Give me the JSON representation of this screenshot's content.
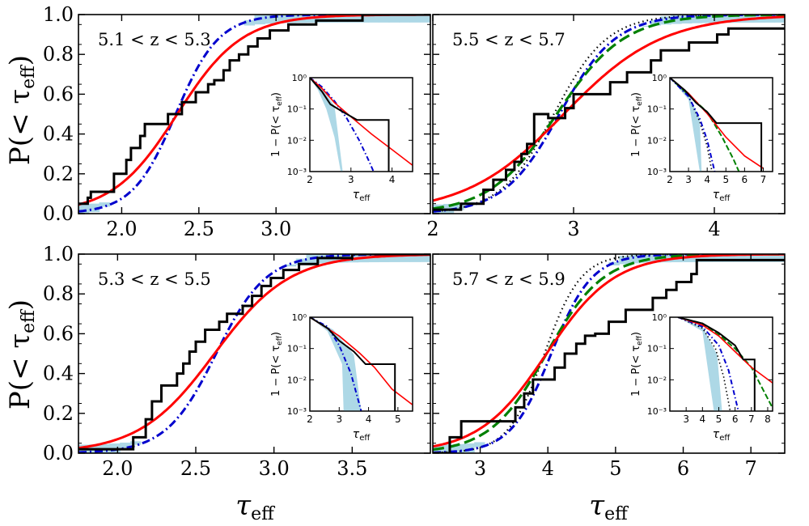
{
  "figure": {
    "ylabel": "P(< τ",
    "ylabel_sub": "eff",
    "ylabel_tail": ")",
    "xlabel": "τ",
    "xlabel_sub": "eff",
    "inset_ylabel": "1 − P(< τ",
    "inset_ylabel_sub": "eff",
    "inset_ylabel_tail": ")",
    "inset_xlabel": "τ",
    "inset_xlabel_sub": "eff"
  },
  "colors": {
    "data_line": "#000000",
    "band": "#add8e6",
    "model_red": "#ff0000",
    "model_blue": "#0000cd",
    "model_green": "#008000",
    "model_dotted": "#000000"
  },
  "chart_data": [
    {
      "type": "line",
      "title": "5.1 < z < 5.3",
      "xlim": [
        1.72,
        4.0
      ],
      "ylim": [
        0,
        1
      ],
      "xticks": [
        2.0,
        2.5,
        3.0
      ],
      "xtick_labels": [
        "2.0",
        "2.5",
        "3.0"
      ],
      "yticks": [
        0.0,
        0.2,
        0.4,
        0.6,
        0.8,
        1.0
      ],
      "ytick_labels": [
        "0.0",
        "0.2",
        "0.4",
        "0.6",
        "0.8",
        "1.0"
      ],
      "series": [
        {
          "name": "observed",
          "style": "step",
          "x": [
            1.72,
            1.78,
            1.8,
            1.9,
            1.95,
            2.03,
            2.06,
            2.12,
            2.15,
            2.2,
            2.26,
            2.3,
            2.36,
            2.39,
            2.44,
            2.48,
            2.56,
            2.6,
            2.66,
            2.7,
            2.76,
            2.82,
            2.88,
            2.96,
            3.08,
            3.26,
            3.56,
            4.0
          ],
          "y": [
            0.05,
            0.08,
            0.11,
            0.11,
            0.2,
            0.27,
            0.33,
            0.39,
            0.45,
            0.45,
            0.45,
            0.5,
            0.5,
            0.56,
            0.56,
            0.61,
            0.65,
            0.67,
            0.72,
            0.77,
            0.8,
            0.84,
            0.88,
            0.92,
            0.95,
            0.97,
            1.0,
            1.0
          ]
        },
        {
          "name": "band",
          "model": "logistic",
          "mu": 2.35,
          "s": 0.14,
          "spread": 0.055
        },
        {
          "name": "dash-dot model",
          "model": "logistic",
          "mu": 2.35,
          "s": 0.14
        },
        {
          "name": "red model",
          "model": "logistic",
          "mu": 2.36,
          "s": 0.21
        }
      ],
      "inset": {
        "xlim": [
          2.0,
          4.5
        ],
        "xticks": [
          2,
          3,
          4
        ],
        "xtick_labels": [
          "2",
          "3",
          "4"
        ],
        "ylim_log": [
          -3,
          0
        ],
        "yticks": [
          0,
          -1,
          -2,
          -3
        ],
        "ytick_labels": [
          "10⁰",
          "10⁻¹",
          "10⁻²",
          "10⁻³"
        ],
        "observed": {
          "x": [
            2.0,
            2.3,
            2.5,
            2.75,
            3.15,
            3.15,
            3.92,
            3.92
          ],
          "log": [
            0,
            -0.45,
            -0.85,
            -1.05,
            -1.35,
            -1.35,
            -1.35,
            -3
          ]
        },
        "red": {
          "x": [
            2.0,
            2.3,
            2.6,
            3.0,
            3.5,
            4.0,
            4.5
          ],
          "log": [
            0,
            -0.35,
            -0.8,
            -1.25,
            -1.8,
            -2.3,
            -2.8
          ]
        },
        "blue": {
          "x": [
            2.0,
            2.3,
            2.6,
            2.9,
            3.2,
            3.45,
            3.55
          ],
          "log": [
            0,
            -0.3,
            -0.75,
            -1.3,
            -2.0,
            -2.7,
            -3
          ]
        },
        "band": {
          "upper_x": [
            2.0,
            2.3,
            2.6,
            2.8
          ],
          "upper_log": [
            0,
            -0.35,
            -0.9,
            -3
          ],
          "lower_x": [
            2.0,
            2.2,
            2.4,
            2.6,
            2.75
          ],
          "lower_log": [
            0,
            -0.4,
            -1.0,
            -1.9,
            -3
          ]
        }
      }
    },
    {
      "type": "line",
      "title": "5.5 < z < 5.7",
      "xlim": [
        2.0,
        4.5
      ],
      "ylim": [
        0,
        1
      ],
      "xticks": [
        2,
        3,
        4
      ],
      "xtick_labels": [
        "2",
        "3",
        "4"
      ],
      "yticks": [
        0.0,
        0.2,
        0.4,
        0.6,
        0.8,
        1.0
      ],
      "ytick_labels": [
        "",
        "",
        "",
        "",
        "",
        ""
      ],
      "series": [
        {
          "name": "observed",
          "style": "step",
          "x": [
            2.0,
            2.2,
            2.36,
            2.43,
            2.52,
            2.58,
            2.63,
            2.67,
            2.72,
            2.78,
            2.82,
            2.9,
            2.94,
            3.0,
            3.12,
            3.26,
            3.38,
            3.55,
            3.62,
            3.82,
            4.02,
            4.1,
            4.5
          ],
          "y": [
            0.02,
            0.05,
            0.12,
            0.17,
            0.22,
            0.26,
            0.3,
            0.35,
            0.5,
            0.5,
            0.48,
            0.48,
            0.53,
            0.6,
            0.6,
            0.66,
            0.71,
            0.77,
            0.82,
            0.86,
            0.9,
            0.93,
            0.93
          ]
        },
        {
          "name": "band",
          "model": "logistic",
          "mu": 2.9,
          "s": 0.2,
          "spread": 0.08
        },
        {
          "name": "dotted model",
          "model": "logistic",
          "mu": 2.86,
          "s": 0.19
        },
        {
          "name": "dash-dot model",
          "model": "logistic",
          "mu": 2.9,
          "s": 0.2
        },
        {
          "name": "green dashed model",
          "model": "logistic",
          "mu": 2.88,
          "s": 0.24
        },
        {
          "name": "red model",
          "model": "logistic",
          "mu": 2.93,
          "s": 0.35
        }
      ],
      "inset": {
        "xlim": [
          2.0,
          7.5
        ],
        "xticks": [
          2,
          3,
          4,
          5,
          6,
          7
        ],
        "xtick_labels": [
          "2",
          "3",
          "4",
          "5",
          "6",
          "7"
        ],
        "ylim_log": [
          -3,
          0
        ],
        "yticks": [
          0,
          -1,
          -2,
          -3
        ],
        "ytick_labels": [
          "10⁰",
          "10⁻¹",
          "10⁻²",
          "10⁻³"
        ],
        "observed": {
          "x": [
            2.0,
            2.8,
            3.4,
            4.0,
            4.5,
            4.5,
            6.9,
            6.9
          ],
          "log": [
            0,
            -0.4,
            -0.8,
            -1.1,
            -1.45,
            -1.45,
            -1.45,
            -3
          ]
        },
        "red": {
          "x": [
            2.0,
            3.0,
            4.0,
            5.0,
            6.0,
            7.0
          ],
          "log": [
            0,
            -0.5,
            -1.15,
            -1.9,
            -2.5,
            -2.9
          ]
        },
        "blue": {
          "x": [
            2.0,
            3.0,
            3.6,
            4.0,
            4.4
          ],
          "log": [
            0,
            -0.6,
            -1.3,
            -2.0,
            -3
          ]
        },
        "green": {
          "x": [
            2.0,
            3.0,
            4.0,
            4.8,
            5.4,
            5.7
          ],
          "log": [
            0,
            -0.55,
            -1.1,
            -1.9,
            -2.6,
            -3
          ]
        },
        "dotted": {
          "x": [
            2.0,
            3.0,
            3.6,
            4.0,
            4.25
          ],
          "log": [
            0,
            -0.6,
            -1.4,
            -2.2,
            -3
          ]
        },
        "band": {
          "upper_x": [
            2.0,
            3.0,
            3.6,
            3.7
          ],
          "upper_log": [
            0,
            -0.55,
            -1.3,
            -3
          ],
          "lower_x": [
            2.0,
            3.0,
            3.6
          ],
          "lower_log": [
            0,
            -0.7,
            -3
          ]
        }
      }
    },
    {
      "type": "line",
      "title": "5.3 < z < 5.5",
      "xlim": [
        1.75,
        4.0
      ],
      "ylim": [
        0,
        1
      ],
      "xticks": [
        2.0,
        2.5,
        3.0,
        3.5
      ],
      "xtick_labels": [
        "2.0",
        "2.5",
        "3.0",
        "3.5"
      ],
      "yticks": [
        0.0,
        0.2,
        0.4,
        0.6,
        0.8,
        1.0
      ],
      "ytick_labels": [
        "0.0",
        "0.2",
        "0.4",
        "0.6",
        "0.8",
        "1.0"
      ],
      "series": [
        {
          "name": "observed",
          "style": "step",
          "x": [
            1.75,
            2.0,
            2.1,
            2.18,
            2.22,
            2.28,
            2.32,
            2.38,
            2.42,
            2.46,
            2.5,
            2.56,
            2.6,
            2.65,
            2.7,
            2.8,
            2.86,
            2.92,
            2.98,
            3.06,
            3.16,
            3.28,
            3.5,
            3.66,
            4.0
          ],
          "y": [
            0.02,
            0.02,
            0.08,
            0.17,
            0.26,
            0.34,
            0.34,
            0.4,
            0.45,
            0.51,
            0.56,
            0.62,
            0.62,
            0.66,
            0.7,
            0.74,
            0.79,
            0.84,
            0.88,
            0.92,
            0.95,
            0.98,
            1.0,
            1.0,
            1.0
          ]
        },
        {
          "name": "band",
          "model": "logistic",
          "mu": 2.62,
          "s": 0.16,
          "spread": 0.06
        },
        {
          "name": "dash-dot model",
          "model": "logistic",
          "mu": 2.63,
          "s": 0.16
        },
        {
          "name": "red model",
          "model": "logistic",
          "mu": 2.62,
          "s": 0.24
        }
      ],
      "inset": {
        "xlim": [
          2.0,
          5.5
        ],
        "xticks": [
          2,
          3,
          4,
          5
        ],
        "xtick_labels": [
          "2",
          "3",
          "4",
          "5"
        ],
        "ylim_log": [
          -3,
          0
        ],
        "yticks": [
          0,
          -1,
          -2,
          -3
        ],
        "ytick_labels": [
          "10⁰",
          "10⁻¹",
          "10⁻²",
          "10⁻³"
        ],
        "observed": {
          "x": [
            2.0,
            2.6,
            3.0,
            3.5,
            3.9,
            3.9,
            4.9,
            4.9
          ],
          "log": [
            0,
            -0.35,
            -0.75,
            -1.1,
            -1.5,
            -1.5,
            -1.5,
            -3
          ]
        },
        "red": {
          "x": [
            2.0,
            3.0,
            3.7,
            4.2,
            4.8,
            5.5
          ],
          "log": [
            0,
            -0.6,
            -1.15,
            -1.6,
            -2.3,
            -2.8
          ]
        },
        "blue": {
          "x": [
            2.0,
            2.6,
            3.0,
            3.4,
            3.75
          ],
          "log": [
            0,
            -0.3,
            -0.9,
            -1.8,
            -3
          ]
        },
        "band": {
          "upper_x": [
            2.0,
            2.8,
            3.5,
            3.75
          ],
          "upper_log": [
            0,
            -0.4,
            -1.2,
            -3
          ],
          "lower_x": [
            2.0,
            2.6,
            3.1,
            3.15
          ],
          "lower_log": [
            0,
            -0.45,
            -1.5,
            -3
          ]
        }
      }
    },
    {
      "type": "line",
      "title": "5.7 < z < 5.9",
      "xlim": [
        2.3,
        7.5
      ],
      "ylim": [
        0,
        1
      ],
      "xticks": [
        3,
        4,
        5,
        6,
        7
      ],
      "xtick_labels": [
        "3",
        "4",
        "5",
        "6",
        "7"
      ],
      "yticks": [
        0.0,
        0.2,
        0.4,
        0.6,
        0.8,
        1.0
      ],
      "ytick_labels": [
        "",
        "",
        "",
        "",
        "",
        ""
      ],
      "series": [
        {
          "name": "observed",
          "style": "step",
          "x": [
            2.3,
            2.55,
            2.72,
            3.38,
            3.52,
            3.65,
            3.78,
            3.95,
            4.1,
            4.25,
            4.42,
            4.55,
            4.7,
            4.9,
            5.05,
            5.15,
            5.55,
            5.75,
            5.9,
            6.12,
            6.2,
            7.1,
            7.5
          ],
          "y": [
            0.0,
            0.08,
            0.16,
            0.16,
            0.23,
            0.3,
            0.37,
            0.37,
            0.43,
            0.5,
            0.55,
            0.59,
            0.6,
            0.66,
            0.66,
            0.72,
            0.78,
            0.82,
            0.86,
            0.9,
            0.97,
            0.97,
            0.97
          ]
        },
        {
          "name": "band",
          "model": "logistic",
          "mu": 4.0,
          "s": 0.3,
          "spread": 0.12
        },
        {
          "name": "dotted model",
          "model": "logistic",
          "mu": 3.95,
          "s": 0.27
        },
        {
          "name": "dash-dot model",
          "model": "logistic",
          "mu": 4.05,
          "s": 0.3
        },
        {
          "name": "green dashed model",
          "model": "logistic",
          "mu": 3.98,
          "s": 0.42
        },
        {
          "name": "red model",
          "model": "logistic",
          "mu": 3.98,
          "s": 0.5
        }
      ],
      "inset": {
        "xlim": [
          2.0,
          8.3
        ],
        "xticks": [
          3,
          4,
          5,
          6,
          7,
          8
        ],
        "xtick_labels": [
          "3",
          "4",
          "5",
          "6",
          "7",
          "8"
        ],
        "ylim_log": [
          -3,
          0
        ],
        "yticks": [
          0,
          -1,
          -2,
          -3
        ],
        "ytick_labels": [
          "10⁰",
          "10⁻¹",
          "10⁻²",
          "10⁻³"
        ],
        "observed": {
          "x": [
            2.5,
            4.0,
            5.0,
            6.0,
            6.5,
            6.5,
            7.2,
            7.2
          ],
          "log": [
            0,
            -0.2,
            -0.5,
            -0.9,
            -1.35,
            -1.35,
            -1.35,
            -3
          ]
        },
        "red": {
          "x": [
            2.5,
            4.0,
            5.0,
            6.0,
            7.0,
            8.3
          ],
          "log": [
            0,
            -0.25,
            -0.6,
            -1.1,
            -1.6,
            -2.1
          ]
        },
        "blue": {
          "x": [
            2.5,
            4.0,
            5.0,
            5.6,
            6.2
          ],
          "log": [
            0,
            -0.3,
            -0.9,
            -1.7,
            -3
          ]
        },
        "green": {
          "x": [
            2.5,
            4.0,
            5.0,
            6.0,
            7.0,
            7.8,
            8.3
          ],
          "log": [
            0,
            -0.2,
            -0.55,
            -1.0,
            -1.6,
            -2.4,
            -2.9
          ]
        },
        "dotted": {
          "x": [
            2.5,
            4.0,
            4.8,
            5.3,
            5.7
          ],
          "log": [
            0,
            -0.35,
            -1.0,
            -1.9,
            -3
          ]
        },
        "band": {
          "upper_x": [
            2.5,
            4.0,
            4.9,
            5.2
          ],
          "upper_log": [
            0,
            -0.3,
            -1.2,
            -3
          ],
          "lower_x": [
            2.5,
            4.0,
            4.7
          ],
          "lower_log": [
            0,
            -0.45,
            -3
          ]
        }
      }
    }
  ]
}
